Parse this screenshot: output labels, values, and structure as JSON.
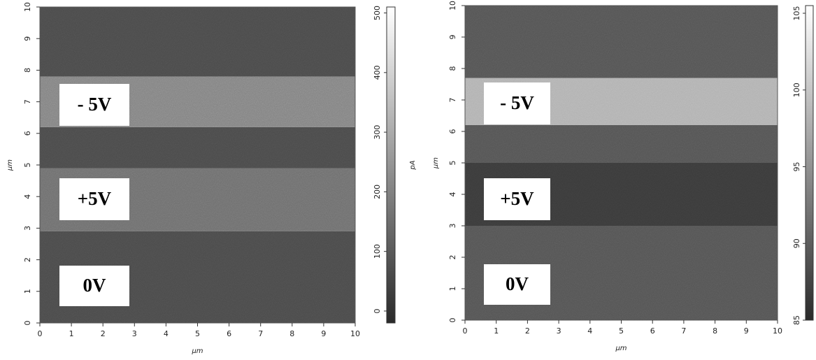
{
  "chart_data": [
    {
      "type": "heatmap",
      "x_label": "μm",
      "y_label": "μm",
      "colorbar_label": "pA",
      "xlim": [
        0,
        10
      ],
      "ylim": [
        0,
        10
      ],
      "xticks": [
        0,
        1,
        2,
        3,
        4,
        5,
        6,
        7,
        8,
        9,
        10
      ],
      "yticks": [
        0,
        1,
        2,
        3,
        4,
        5,
        6,
        7,
        8,
        9,
        10
      ],
      "clim": [
        -20,
        510
      ],
      "cticks": [
        0,
        100,
        200,
        300,
        400,
        500
      ],
      "bands": [
        {
          "from": 0,
          "to": 2.9,
          "value": 60
        },
        {
          "from": 2.9,
          "to": 4.9,
          "value": 150
        },
        {
          "from": 4.9,
          "to": 6.2,
          "value": 60
        },
        {
          "from": 6.2,
          "to": 7.8,
          "value": 200
        },
        {
          "from": 7.8,
          "to": 10,
          "value": 60
        }
      ],
      "annotations": [
        "- 5V",
        "+5V",
        "0V"
      ]
    },
    {
      "type": "heatmap",
      "x_label": "μm",
      "y_label": "μm",
      "xlim": [
        0,
        10
      ],
      "ylim": [
        0,
        10
      ],
      "xticks": [
        0,
        1,
        2,
        3,
        4,
        5,
        6,
        7,
        8,
        9,
        10
      ],
      "yticks": [
        0,
        1,
        2,
        3,
        4,
        5,
        6,
        7,
        8,
        9,
        10
      ],
      "clim": [
        85,
        105.5
      ],
      "cticks": [
        85,
        90,
        95,
        100,
        105
      ],
      "bands": [
        {
          "from": 0,
          "to": 3,
          "value": 89
        },
        {
          "from": 3,
          "to": 5,
          "value": 86.5
        },
        {
          "from": 5,
          "to": 6.2,
          "value": 89
        },
        {
          "from": 6.2,
          "to": 7.7,
          "value": 98
        },
        {
          "from": 7.7,
          "to": 10,
          "value": 89
        }
      ],
      "annotations": [
        "- 5V",
        "+5V",
        "0V"
      ]
    }
  ]
}
